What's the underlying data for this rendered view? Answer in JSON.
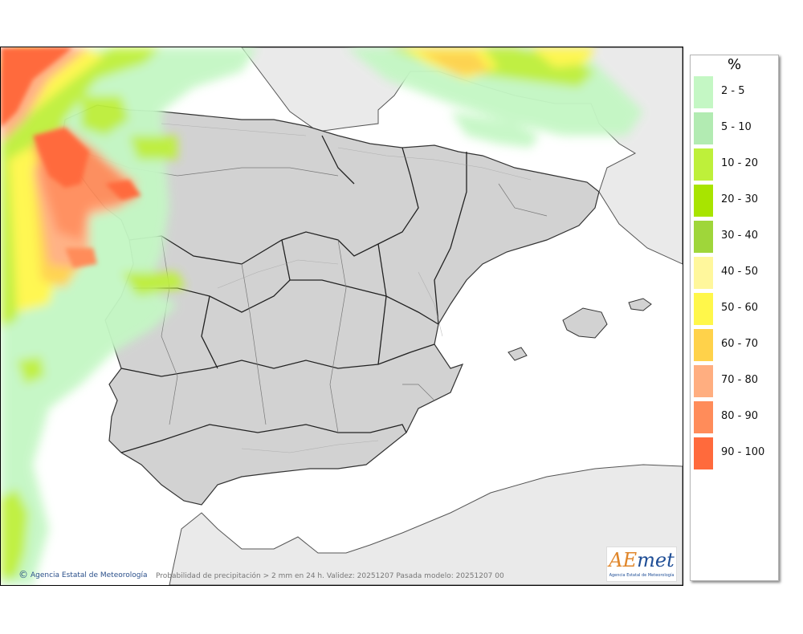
{
  "footer": {
    "credit": "Agencia Estatal de Meteorología",
    "caption": "Probabilidad de precipitación > 2 mm en 24 h. Validez: 20251207 Pasada modelo: 20251207 00"
  },
  "logo": {
    "brand_a": "AE",
    "brand_b": "met",
    "subtitle": "Agencia Estatal de Meteorología"
  },
  "legend": {
    "unit": "%",
    "items": [
      {
        "label": "2 - 5",
        "color": "#c4f7c4"
      },
      {
        "label": "5 - 10",
        "color": "#b2ebb2"
      },
      {
        "label": "10 - 20",
        "color": "#bef03a"
      },
      {
        "label": "20 - 30",
        "color": "#a8e400"
      },
      {
        "label": "30 - 40",
        "color": "#9fd63a"
      },
      {
        "label": "40 - 50",
        "color": "#fff79c"
      },
      {
        "label": "50 - 60",
        "color": "#fff74a"
      },
      {
        "label": "60 - 70",
        "color": "#ffd24a"
      },
      {
        "label": "70 - 80",
        "color": "#ffae80"
      },
      {
        "label": "80 - 90",
        "color": "#ff8c5a"
      },
      {
        "label": "90 - 100",
        "color": "#ff6a3c"
      }
    ]
  },
  "map": {
    "sea_color": "#ffffff",
    "land_color": "#eaeaea",
    "iberia_color": "#d2d2d2",
    "border_color": "#222222"
  }
}
